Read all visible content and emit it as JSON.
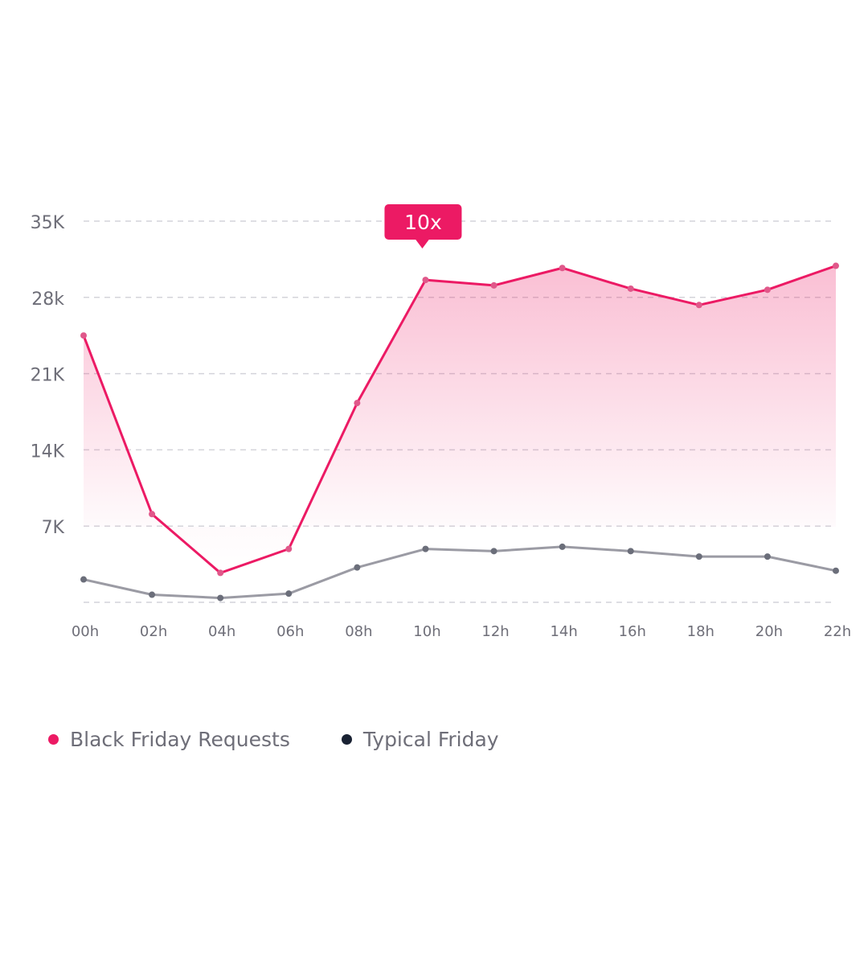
{
  "chart_data": {
    "type": "line",
    "title": "",
    "xlabel": "",
    "ylabel": "",
    "categories": [
      "00h",
      "02h",
      "04h",
      "06h",
      "08h",
      "10h",
      "12h",
      "14h",
      "16h",
      "18h",
      "20h",
      "22h"
    ],
    "y_ticks": [
      {
        "value": 35000,
        "label": "35K"
      },
      {
        "value": 28000,
        "label": "28k"
      },
      {
        "value": 21000,
        "label": "21K"
      },
      {
        "value": 14000,
        "label": "14K"
      },
      {
        "value": 7000,
        "label": "7K"
      },
      {
        "value": 0,
        "label": ""
      }
    ],
    "ylim": [
      0,
      35000
    ],
    "grid": true,
    "legend_position": "bottom-left",
    "series": [
      {
        "name": "Black Friday Requests",
        "color": "#ec1a64",
        "area": true,
        "values": [
          24500,
          8100,
          2700,
          4900,
          18300,
          29600,
          29100,
          30700,
          28800,
          27300,
          28700,
          30900
        ]
      },
      {
        "name": "Typical Friday",
        "color": "#9b9ba4",
        "dot_color": "#6b6e7a",
        "legend_color": "#1a2233",
        "values": [
          2100,
          700,
          400,
          800,
          3200,
          4900,
          4700,
          5100,
          4700,
          4200,
          4200,
          2900
        ]
      }
    ],
    "annotation": {
      "label": "10x",
      "category": "10h",
      "color": "#ec1a64"
    }
  }
}
